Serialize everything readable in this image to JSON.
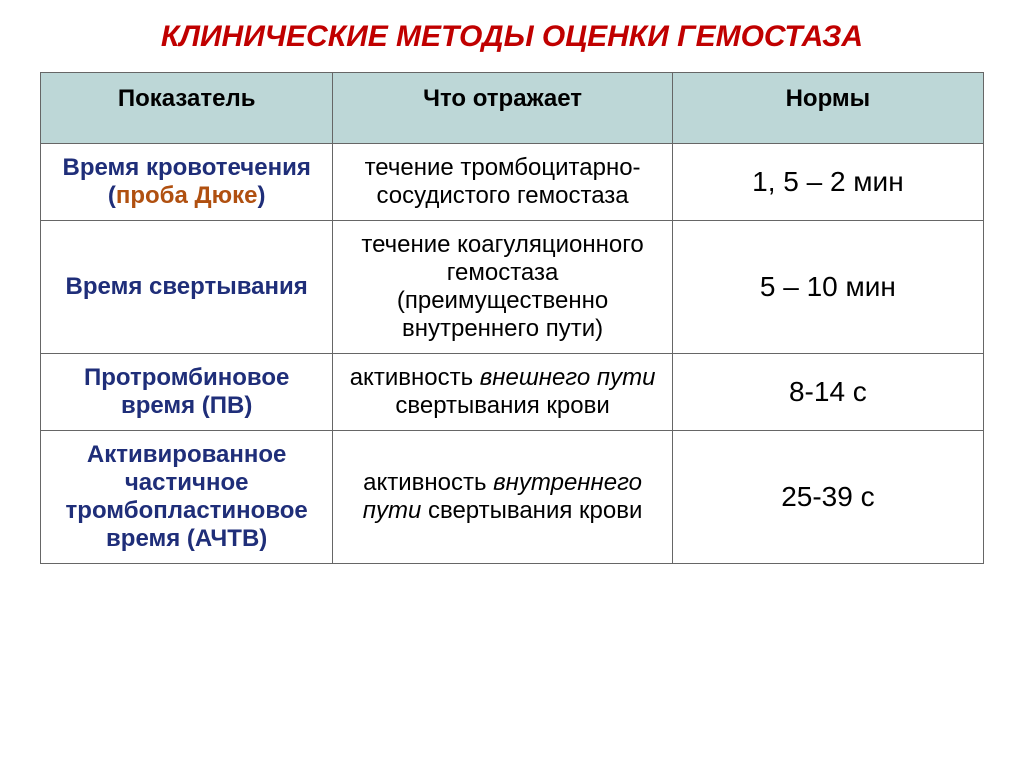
{
  "title": {
    "text": "КЛИНИЧЕСКИЕ МЕТОДЫ ОЦЕНКИ ГЕМОСТАЗА",
    "color": "#c00000",
    "fontsize": 30
  },
  "table": {
    "header_bg": "#bdd7d7",
    "header_color": "#000000",
    "body_bg": "#ffffff",
    "border_color": "#666666",
    "fontsize_header": 24,
    "fontsize_body": 24,
    "fontsize_norms": 28,
    "indicator_color": "#1f2e79",
    "duke_color": "#b05010",
    "body_color": "#000000",
    "columns": [
      "Показатель",
      "Что отражает",
      "Нормы"
    ],
    "rows": [
      {
        "indicator_pre": "Время кровотечения (",
        "indicator_colored": "проба Дюке",
        "indicator_post": ")",
        "reflects_html": "течение тромбоцитарно-сосудистого гемостаза",
        "norm": "1, 5 – 2 мин"
      },
      {
        "indicator_pre": "Время свертывания",
        "indicator_colored": "",
        "indicator_post": "",
        "reflects_html": "течение коагуляционного гемостаза (преимущественно внутреннего пути)",
        "norm": "5 – 10 мин"
      },
      {
        "indicator_pre": "Протромбиновое время (ПВ)",
        "indicator_colored": "",
        "indicator_post": "",
        "reflects_html": "активность <span class=\"italic\">внешнего пути</span> свертывания крови",
        "norm": "8-14 с"
      },
      {
        "indicator_pre": "Активированное частичное тромбопластиновое время (АЧТВ)",
        "indicator_colored": "",
        "indicator_post": "",
        "reflects_html": "активность <span class=\"italic\">внутреннего пути</span> свертывания крови",
        "norm": "25-39 с"
      }
    ]
  }
}
